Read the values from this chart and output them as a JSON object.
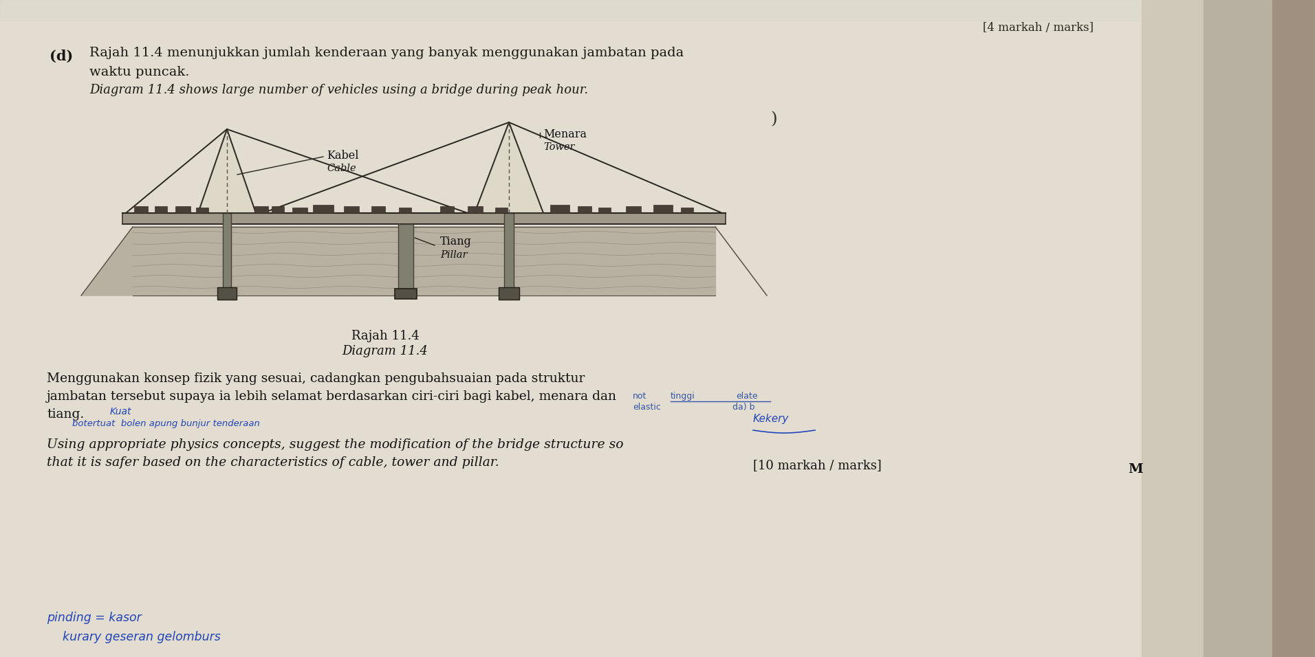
{
  "paper_color": "#e8e4d8",
  "right_page_color": "#c8c0b0",
  "far_right_color": "#a09080",
  "title_marks": "[4 markah / marks]",
  "section_label": "(d)",
  "malay_text1": "Rajah 11.4 menunjukkan jumlah kenderaan yang banyak menggunakan jambatan pada",
  "malay_text2": "waktu puncak.",
  "english_text1": "Diagram 11.4 shows large number of vehicles using a bridge during peak hour.",
  "diagram_caption1": "Rajah 11.4",
  "diagram_caption2": "Diagram 11.4",
  "label_kabel": "Kabel",
  "label_cable": "Cable",
  "label_menara": "Menara",
  "label_tower": "Tower",
  "label_tiang": "Tiang",
  "label_pillar": "Pillar",
  "malay_question1": "Menggunakan konsep fizik yang sesuai, cadangkan pengubahsuaian pada struktur",
  "malay_question2": "jambatan tersebut supaya ia lebih selamat berdasarkan ciri-ciri bagi kabel, menara dan",
  "malay_question3": "tiang.",
  "english_question1": "Using appropriate physics concepts, suggest the modification of the bridge structure so",
  "english_question2": "that it is safer based on the characteristics of cable, tower and pillar.",
  "marks_bottom": "[10 markah / marks]",
  "page_letter": "M",
  "hw_not": "not",
  "hw_tinggi": "tinggi",
  "hw_elate": "elate",
  "hw_elastic": "elastic",
  "hw_dayb": "da) b",
  "hw_kekery": "Kekery",
  "hw_kuat": "Kuat",
  "hw_tiang2": "botertuat  bolen apung bunjur tenderaan",
  "hw_bottom1": "pinding = kasor",
  "hw_bottom2": "  kurary geseran gelomburs",
  "arrow_symbol": ")"
}
